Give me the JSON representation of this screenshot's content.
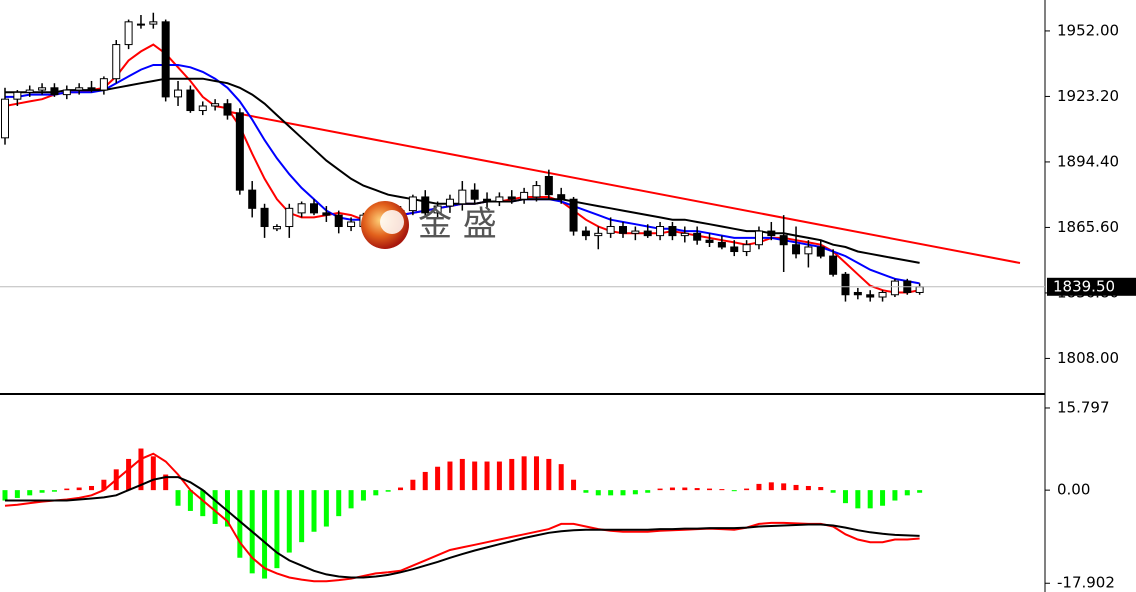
{
  "chart_data": [
    {
      "type": "candlestick",
      "watermark": "金 盛",
      "ylim": [
        1792.8,
        1965.6
      ],
      "yticks": [
        {
          "value": 1952,
          "label": "1952.00"
        },
        {
          "value": 1923.2,
          "label": "1923.20"
        },
        {
          "value": 1894.4,
          "label": "1894.40"
        },
        {
          "value": 1865.6,
          "label": "1865.60"
        },
        {
          "value": 1836.8,
          "label": "1836.80"
        },
        {
          "value": 1808,
          "label": "1808.00"
        }
      ],
      "current_price": {
        "value": 1839.5,
        "label": "1839.50"
      },
      "up_color": "#ffffff",
      "down_color": "#000000",
      "open": [
        1905,
        1922,
        1925,
        1926,
        1927,
        1924,
        1926,
        1927,
        1926,
        1931,
        1946,
        1955,
        1955,
        1956,
        1923,
        1926,
        1917,
        1919,
        1920,
        1916,
        1882,
        1874,
        1865,
        1866,
        1872,
        1876,
        1872,
        1871,
        1866,
        1866,
        1871,
        1874,
        1870,
        1873,
        1879,
        1872,
        1875,
        1876,
        1882,
        1878,
        1877,
        1879,
        1878,
        1879,
        1888,
        1880,
        1878,
        1864,
        1862,
        1863,
        1866,
        1863,
        1864,
        1862,
        1866,
        1862,
        1863,
        1860,
        1859,
        1857,
        1855,
        1858,
        1864,
        1862,
        1858,
        1854,
        1857,
        1853,
        1845,
        1837,
        1836,
        1835,
        1836,
        1842,
        1837
      ],
      "high": [
        1927,
        1926,
        1928,
        1929,
        1929,
        1928,
        1929,
        1930,
        1932,
        1948,
        1957,
        1959,
        1960,
        1957,
        1930,
        1928,
        1921,
        1922,
        1922,
        1918,
        1886,
        1876,
        1867,
        1876,
        1877,
        1878,
        1875,
        1873,
        1870,
        1872,
        1876,
        1876,
        1875,
        1880,
        1882,
        1877,
        1880,
        1886,
        1885,
        1881,
        1881,
        1882,
        1883,
        1886,
        1891,
        1883,
        1879,
        1866,
        1866,
        1870,
        1868,
        1866,
        1867,
        1868,
        1868,
        1866,
        1866,
        1863,
        1862,
        1860,
        1860,
        1866,
        1868,
        1871,
        1866,
        1860,
        1860,
        1856,
        1846,
        1839,
        1838,
        1838,
        1843,
        1843,
        1841
      ],
      "low": [
        1902,
        1919,
        1923,
        1924,
        1923,
        1922,
        1924,
        1925,
        1924,
        1929,
        1944,
        1953,
        1953,
        1921,
        1919,
        1916,
        1915,
        1917,
        1913,
        1880,
        1870,
        1861,
        1864,
        1861,
        1870,
        1871,
        1868,
        1863,
        1864,
        1864,
        1868,
        1868,
        1868,
        1871,
        1870,
        1870,
        1872,
        1873,
        1876,
        1874,
        1875,
        1876,
        1876,
        1877,
        1878,
        1876,
        1862,
        1860,
        1856,
        1861,
        1861,
        1860,
        1861,
        1860,
        1860,
        1859,
        1858,
        1857,
        1856,
        1853,
        1853,
        1856,
        1860,
        1846,
        1852,
        1848,
        1852,
        1844,
        1833,
        1834,
        1833,
        1833,
        1835,
        1836,
        1836
      ],
      "close": [
        1922,
        1925,
        1926,
        1927,
        1924,
        1926,
        1927,
        1926,
        1931,
        1946,
        1956,
        1955,
        1956,
        1923,
        1926,
        1917,
        1919,
        1920,
        1915,
        1882,
        1874,
        1866,
        1866,
        1874,
        1876,
        1872,
        1871,
        1866,
        1868,
        1871,
        1874,
        1870,
        1873,
        1879,
        1872,
        1875,
        1878,
        1882,
        1878,
        1877,
        1879,
        1878,
        1881,
        1884,
        1880,
        1878,
        1864,
        1862,
        1863,
        1866,
        1863,
        1864,
        1862,
        1866,
        1862,
        1863,
        1860,
        1859,
        1857,
        1855,
        1858,
        1864,
        1862,
        1858,
        1854,
        1857,
        1853,
        1845,
        1836,
        1836,
        1835,
        1837,
        1842,
        1837,
        1839.5
      ],
      "series": [
        {
          "color": "#ff0000",
          "values": [
            1919,
            1920,
            1921,
            1922,
            1924,
            1925,
            1925,
            1926,
            1927,
            1932,
            1939,
            1943,
            1946,
            1942,
            1936,
            1930,
            1923,
            1919,
            1918,
            1910,
            1898,
            1887,
            1878,
            1872,
            1870,
            1870,
            1871,
            1872,
            1871,
            1869,
            1869,
            1870,
            1871,
            1872,
            1873,
            1874,
            1875,
            1876,
            1876,
            1877,
            1877,
            1878,
            1879,
            1879,
            1879,
            1877,
            1873,
            1869,
            1866,
            1864,
            1863,
            1863,
            1863,
            1863,
            1864,
            1863,
            1862,
            1861,
            1860,
            1859,
            1858,
            1859,
            1861,
            1861,
            1860,
            1859,
            1858,
            1855,
            1850,
            1845,
            1840,
            1838,
            1837,
            1837,
            1838
          ]
        },
        {
          "color": "#0000ff",
          "values": [
            1923,
            1923,
            1924,
            1924,
            1924,
            1925,
            1925,
            1925,
            1926,
            1929,
            1932,
            1935,
            1937,
            1937,
            1937,
            1936,
            1934,
            1931,
            1927,
            1921,
            1913,
            1904,
            1896,
            1889,
            1883,
            1878,
            1873,
            1870,
            1869,
            1869,
            1869,
            1870,
            1871,
            1872,
            1873,
            1874,
            1875,
            1876,
            1876,
            1877,
            1877,
            1877,
            1878,
            1878,
            1878,
            1877,
            1875,
            1873,
            1871,
            1869,
            1868,
            1867,
            1866,
            1865,
            1865,
            1864,
            1864,
            1863,
            1862,
            1861,
            1861,
            1861,
            1861,
            1860,
            1859,
            1858,
            1857,
            1855,
            1853,
            1850,
            1847,
            1845,
            1843,
            1842,
            1841
          ]
        },
        {
          "color": "#000000",
          "values": [
            1925,
            1925,
            1925,
            1925,
            1925,
            1926,
            1926,
            1926,
            1926,
            1927,
            1928,
            1929,
            1930,
            1931,
            1931,
            1931,
            1931,
            1930,
            1929,
            1927,
            1924,
            1920,
            1915,
            1910,
            1905,
            1900,
            1895,
            1891,
            1887,
            1884,
            1882,
            1880,
            1879,
            1878,
            1877,
            1876,
            1876,
            1876,
            1876,
            1877,
            1877,
            1877,
            1878,
            1878,
            1878,
            1878,
            1877,
            1876,
            1875,
            1874,
            1873,
            1872,
            1871,
            1870,
            1869,
            1869,
            1868,
            1867,
            1866,
            1865,
            1864,
            1864,
            1863,
            1863,
            1862,
            1861,
            1860,
            1858,
            1857,
            1855,
            1854,
            1853,
            1852,
            1851,
            1850
          ]
        }
      ]
    },
    {
      "type": "macd",
      "ylim": [
        -19.2,
        18.1
      ],
      "yticks": [
        15.797,
        {
          "value": 0,
          "label": "0.00"
        },
        -17.902
      ],
      "up_color": "#ff0000",
      "down_color": "#00ff00",
      "histogram": [
        -2,
        -1.5,
        -1,
        -0.5,
        -0.3,
        0.3,
        0.5,
        0.8,
        2,
        4,
        6,
        8,
        6.5,
        3,
        -3,
        -4,
        -5,
        -6.5,
        -7,
        -13,
        -16,
        -17,
        -15,
        -12,
        -10,
        -8,
        -7,
        -5,
        -3.5,
        -2,
        -1,
        -0.3,
        0.5,
        2,
        3.5,
        4.5,
        5.5,
        6,
        5.5,
        5.5,
        5.5,
        6,
        6.5,
        6.5,
        6,
        5,
        2,
        -0.5,
        -1,
        -1,
        -1,
        -0.8,
        -0.5,
        0.3,
        0.5,
        0.5,
        0.4,
        0.3,
        0.2,
        -0.2,
        0.3,
        1.2,
        1.5,
        1.3,
        1,
        0.8,
        0.6,
        -0.5,
        -2.5,
        -3.5,
        -3.5,
        -3,
        -2,
        -1,
        -0.5
      ],
      "series": [
        {
          "color": "#ff0000",
          "values": [
            -3,
            -2.8,
            -2.5,
            -2.2,
            -2,
            -1.8,
            -1.5,
            -1,
            0,
            2,
            4,
            6,
            7,
            5.5,
            3,
            0,
            -2,
            -4,
            -6,
            -10,
            -13,
            -15,
            -16,
            -16.8,
            -17.2,
            -17.5,
            -17.5,
            -17.3,
            -17,
            -16.5,
            -16,
            -15.8,
            -15.5,
            -14.5,
            -13.5,
            -12.5,
            -11.5,
            -11,
            -10.5,
            -10,
            -9.5,
            -9,
            -8.5,
            -8,
            -7.5,
            -6.5,
            -6.5,
            -7,
            -7.5,
            -7.8,
            -8,
            -8,
            -8,
            -7.8,
            -7.7,
            -7.6,
            -7.5,
            -7.4,
            -7.5,
            -7.6,
            -7.2,
            -6.5,
            -6.3,
            -6.3,
            -6.4,
            -6.5,
            -6.5,
            -7,
            -8.5,
            -9.5,
            -10,
            -10,
            -9.5,
            -9.5,
            -9.3
          ]
        },
        {
          "color": "#000000",
          "values": [
            -2,
            -2,
            -2,
            -2,
            -2,
            -2,
            -1.8,
            -1.6,
            -1.4,
            -1,
            0,
            1,
            2,
            2.5,
            2.5,
            1.5,
            0,
            -2,
            -4,
            -6,
            -8,
            -10,
            -12,
            -13.5,
            -14.5,
            -15.5,
            -16.2,
            -16.6,
            -16.8,
            -16.8,
            -16.6,
            -16.3,
            -15.8,
            -15.2,
            -14.5,
            -13.8,
            -13,
            -12.3,
            -11.6,
            -11,
            -10.4,
            -9.8,
            -9.2,
            -8.7,
            -8.2,
            -7.9,
            -7.7,
            -7.6,
            -7.6,
            -7.6,
            -7.6,
            -7.6,
            -7.6,
            -7.5,
            -7.5,
            -7.4,
            -7.4,
            -7.3,
            -7.3,
            -7.3,
            -7.2,
            -7,
            -6.9,
            -6.8,
            -6.7,
            -6.6,
            -6.6,
            -6.8,
            -7.2,
            -7.7,
            -8.1,
            -8.4,
            -8.6,
            -8.7,
            -8.8
          ]
        }
      ]
    }
  ]
}
